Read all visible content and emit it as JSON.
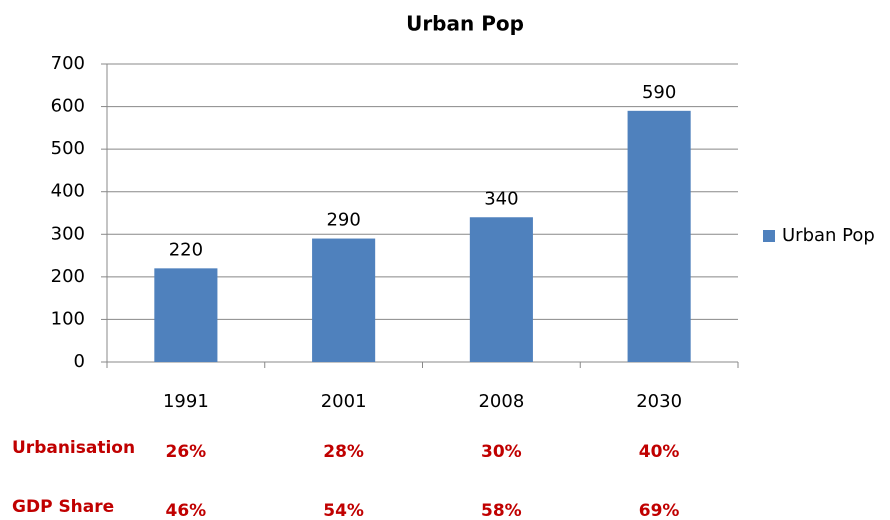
{
  "chart_data": {
    "type": "bar",
    "title": "Urban Pop",
    "categories": [
      "1991",
      "2001",
      "2008",
      "2030"
    ],
    "series": [
      {
        "name": "Urban Pop",
        "color": "#4f81bd",
        "values": [
          220,
          290,
          340,
          590
        ]
      }
    ],
    "ylim": [
      0,
      700
    ],
    "yticks": [
      0,
      100,
      200,
      300,
      400,
      500,
      600,
      700
    ],
    "grid": true,
    "legend": "right"
  },
  "table": {
    "rows": [
      {
        "label": "Urbanisation",
        "cells": [
          "26%",
          "28%",
          "30%",
          "40%"
        ]
      },
      {
        "label": "GDP Share",
        "cells": [
          "46%",
          "54%",
          "58%",
          "69%"
        ]
      }
    ]
  }
}
